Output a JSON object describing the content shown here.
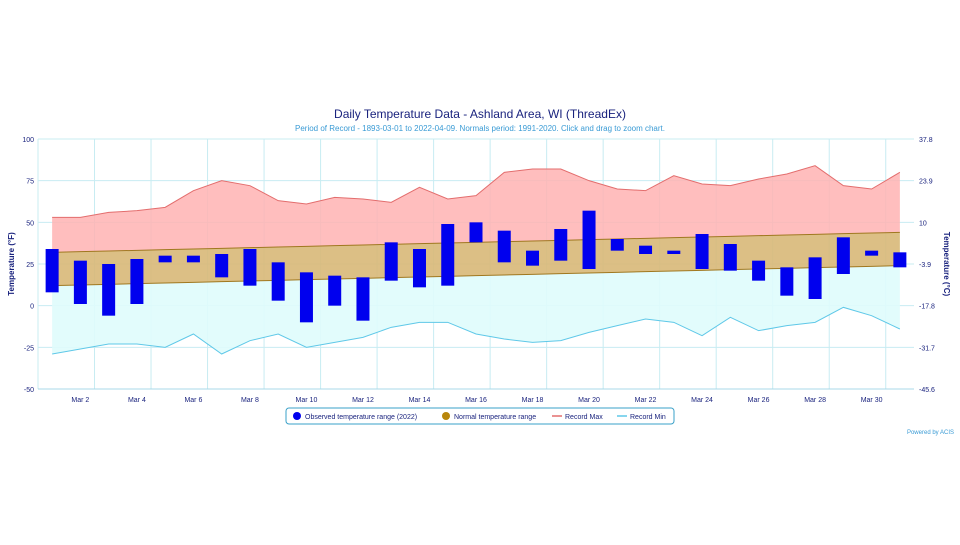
{
  "chart_data": {
    "type": "bar",
    "title": "Daily Temperature Data - Ashland Area, WI (ThreadEx)",
    "subtitle": "Period of Record - 1893-03-01 to 2022-04-09. Normals period: 1991-2020. Click and drag to zoom chart.",
    "ylabel": "Temperature (°F)",
    "y2label": "Temperature (°C)",
    "credit": "Powered by ACIS",
    "ylim": [
      -50,
      100
    ],
    "yticks": [
      -50,
      -25,
      0,
      25,
      50,
      75,
      100
    ],
    "y2ticks": [
      "-45.6",
      "-31.7",
      "-17.8",
      "-3.9",
      "10",
      "23.9",
      "37.8"
    ],
    "x": [
      1,
      2,
      3,
      4,
      5,
      6,
      7,
      8,
      9,
      10,
      11,
      12,
      13,
      14,
      15,
      16,
      17,
      18,
      19,
      20,
      21,
      22,
      23,
      24,
      25,
      26,
      27,
      28,
      29,
      30,
      31
    ],
    "xtick_values": [
      2,
      4,
      6,
      8,
      10,
      12,
      14,
      16,
      18,
      20,
      22,
      24,
      26,
      28,
      30
    ],
    "xtick_labels": [
      "Mar 2",
      "Mar 4",
      "Mar 6",
      "Mar 8",
      "Mar 10",
      "Mar 12",
      "Mar 14",
      "Mar 16",
      "Mar 18",
      "Mar 20",
      "Mar 22",
      "Mar 24",
      "Mar 26",
      "Mar 28",
      "Mar 30"
    ],
    "series": [
      {
        "name": "Observed temperature range (2022)",
        "color": "#0000ee",
        "high": [
          34,
          27,
          25,
          28,
          30,
          30,
          31,
          34,
          26,
          20,
          18,
          17,
          38,
          34,
          49,
          50,
          45,
          33,
          46,
          57,
          40,
          36,
          33,
          43,
          37,
          27,
          23,
          29,
          41,
          33,
          32
        ],
        "low": [
          8,
          1,
          -6,
          1,
          26,
          26,
          17,
          12,
          3,
          -10,
          0,
          -9,
          15,
          11,
          12,
          38,
          26,
          24,
          27,
          22,
          33,
          31,
          31,
          22,
          21,
          15,
          6,
          4,
          19,
          30,
          23
        ]
      },
      {
        "name": "Normal temperature range",
        "color": "#b8860b",
        "high": [
          32.0,
          32.4,
          32.8,
          33.2,
          33.6,
          34.0,
          34.4,
          34.8,
          35.2,
          35.6,
          36.0,
          36.4,
          36.8,
          37.2,
          37.6,
          38.0,
          38.4,
          38.8,
          39.2,
          39.6,
          40.0,
          40.4,
          40.8,
          41.2,
          41.6,
          42.0,
          42.4,
          42.8,
          43.2,
          43.6,
          44.0
        ],
        "low": [
          12.0,
          12.4,
          12.8,
          13.2,
          13.6,
          14.0,
          14.4,
          14.8,
          15.2,
          15.6,
          16.0,
          16.4,
          16.8,
          17.2,
          17.6,
          18.0,
          18.4,
          18.8,
          19.2,
          19.6,
          20.0,
          20.4,
          20.8,
          21.2,
          21.6,
          22.0,
          22.4,
          22.8,
          23.2,
          23.6,
          24.0
        ]
      },
      {
        "name": "Record Max",
        "color": "#e36d6d",
        "values": [
          53,
          53,
          56,
          57,
          59,
          69,
          75,
          72,
          63,
          61,
          65,
          64,
          62,
          71,
          64,
          66,
          80,
          82,
          82,
          75,
          70,
          69,
          78,
          73,
          72,
          76,
          79,
          84,
          72,
          70,
          80
        ]
      },
      {
        "name": "Record Min",
        "color": "#5fc8e8",
        "values": [
          -29,
          -26,
          -23,
          -23,
          -25,
          -17,
          -29,
          -21,
          -17,
          -25,
          -22,
          -19,
          -13,
          -10,
          -10,
          -17,
          -20,
          -22,
          -21,
          -16,
          -12,
          -8,
          -10,
          -18,
          -7,
          -15,
          -12,
          -10,
          -1,
          -6,
          -14
        ]
      }
    ],
    "legend_position": "bottom-center",
    "grid": true
  }
}
